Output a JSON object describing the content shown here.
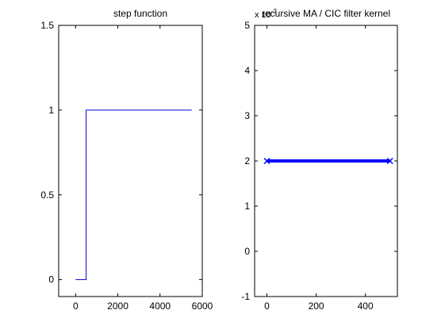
{
  "chart_data": [
    {
      "type": "line",
      "title": "step function",
      "xlabel": "",
      "ylabel": "",
      "xlim": [
        -800,
        6000
      ],
      "ylim": [
        -0.1,
        1.5
      ],
      "xticks": [
        0,
        2000,
        4000,
        6000
      ],
      "xtick_labels": [
        "0",
        "2000",
        "4000",
        "6000"
      ],
      "yticks": [
        0,
        0.5,
        1,
        1.5
      ],
      "ytick_labels": [
        "0",
        "0.5",
        "1",
        "1.5"
      ],
      "grid": false,
      "series": [
        {
          "color": "#0000cc",
          "line_width": 1,
          "x": [
            0,
            500,
            500,
            5500
          ],
          "y": [
            0,
            0,
            1,
            1
          ]
        }
      ]
    },
    {
      "type": "line",
      "title": "recursive MA / CIC filter kernel",
      "xlabel": "",
      "ylabel": "",
      "y_exponent_label": "x 10^-3",
      "xlim": [
        -50,
        530
      ],
      "ylim": [
        -1,
        5
      ],
      "xticks": [
        0,
        200,
        400
      ],
      "xtick_labels": [
        "0",
        "200",
        "400"
      ],
      "yticks": [
        -1,
        0,
        1,
        2,
        3,
        4,
        5
      ],
      "ytick_labels": [
        "-1",
        "0",
        "1",
        "2",
        "3",
        "4",
        "5"
      ],
      "grid": false,
      "series": [
        {
          "color": "#0000ff",
          "line_width": 4,
          "marker": "x",
          "x": [
            0,
            500
          ],
          "y": [
            2,
            2
          ]
        }
      ]
    }
  ]
}
